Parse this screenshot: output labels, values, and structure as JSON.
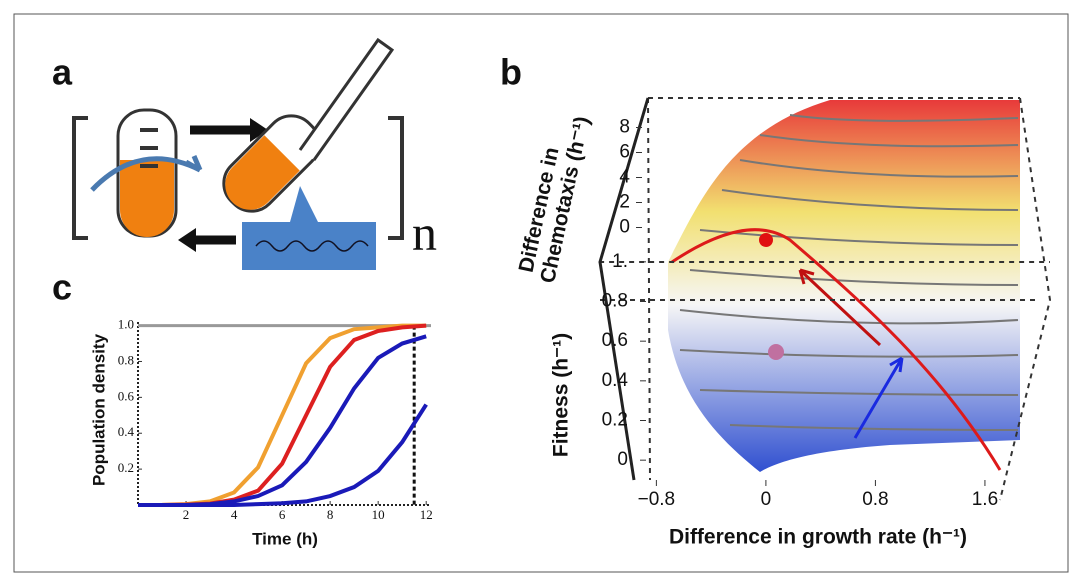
{
  "panels": {
    "a": "a",
    "b": "b",
    "c": "c"
  },
  "diagram": {
    "subscript": "n"
  },
  "chart_data": [
    {
      "type": "surface",
      "xlabel": "Difference in growth rate (h⁻¹)",
      "xlim": [
        -1,
        1.9
      ],
      "xticks": [
        {
          "value": -0.8,
          "label": "−0.8"
        },
        0,
        0.8,
        1.6
      ],
      "y2label_lines": [
        "Difference in",
        "Chemotaxis (h⁻¹)"
      ],
      "y2lim": [
        -1,
        9
      ],
      "y2ticks": [
        0,
        2,
        4,
        6,
        8
      ],
      "ylabel": "Fitness (h⁻¹)",
      "ylim": [
        -0.1,
        1.1
      ],
      "yticks": [
        0,
        0.2,
        0.4,
        0.6,
        0.8,
        {
          "value": 1,
          "label": "1."
        }
      ]
    },
    {
      "type": "line",
      "xlabel": "Time (h)",
      "ylabel": "Population density",
      "x": [
        0,
        1,
        2,
        3,
        4,
        5,
        6,
        7,
        8,
        9,
        10,
        11,
        12
      ],
      "xlim": [
        0,
        12.2
      ],
      "xticks": [
        2,
        4,
        6,
        8,
        10,
        12
      ],
      "ylim": [
        0,
        1.02
      ],
      "yticks": [
        0.2,
        0.4,
        0.6,
        0.8,
        {
          "value": 1,
          "label": "1.0"
        }
      ],
      "hline": 1,
      "vline": 11.5,
      "series": [
        {
          "color": "#f0a030",
          "values": [
            0,
            0.001,
            0.005,
            0.02,
            0.07,
            0.21,
            0.5,
            0.79,
            0.93,
            0.98,
            0.99,
            1,
            1
          ]
        },
        {
          "color": "#dd2020",
          "values": [
            0,
            0,
            0.002,
            0.008,
            0.03,
            0.08,
            0.23,
            0.5,
            0.77,
            0.92,
            0.97,
            0.99,
            1
          ]
        },
        {
          "color": "#1a1ab8",
          "values": [
            0,
            0,
            0,
            0.005,
            0.02,
            0.05,
            0.11,
            0.24,
            0.43,
            0.65,
            0.82,
            0.9,
            0.94
          ]
        },
        {
          "color": "#1a1ab8",
          "values": [
            0,
            0,
            0,
            0,
            0,
            0.005,
            0.01,
            0.02,
            0.05,
            0.1,
            0.19,
            0.35,
            0.56
          ]
        }
      ]
    }
  ]
}
